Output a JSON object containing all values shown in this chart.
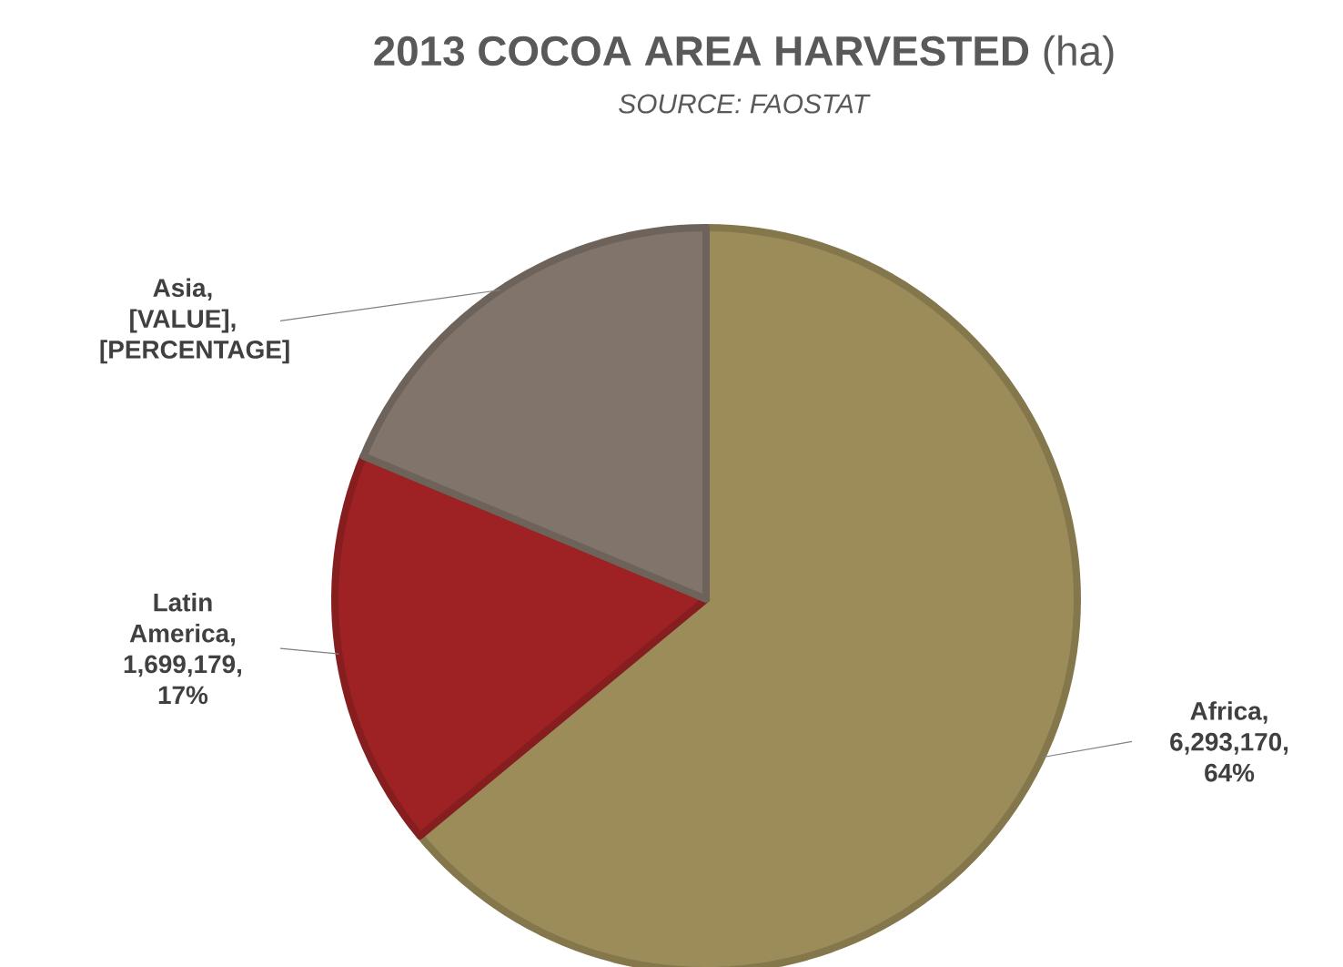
{
  "chart_data": {
    "type": "pie",
    "title": "**2013 COCOA AREA HARVESTED** (ha)",
    "subtitle": "*SOURCE: FAOSTAT*",
    "categories": [
      "Africa",
      "Latin America",
      "Asia"
    ],
    "values": [
      6293170,
      1699179,
      1840000
    ],
    "colors": [
      "#9b8c5a",
      "#9e2224",
      "#80746b"
    ],
    "value_labels": [
      ", 6,293,170, 64%",
      ", 1,699,179, 17%",
      ", [VALUE], [PERCENTAGE]"
    ],
    "legend": false
  }
}
